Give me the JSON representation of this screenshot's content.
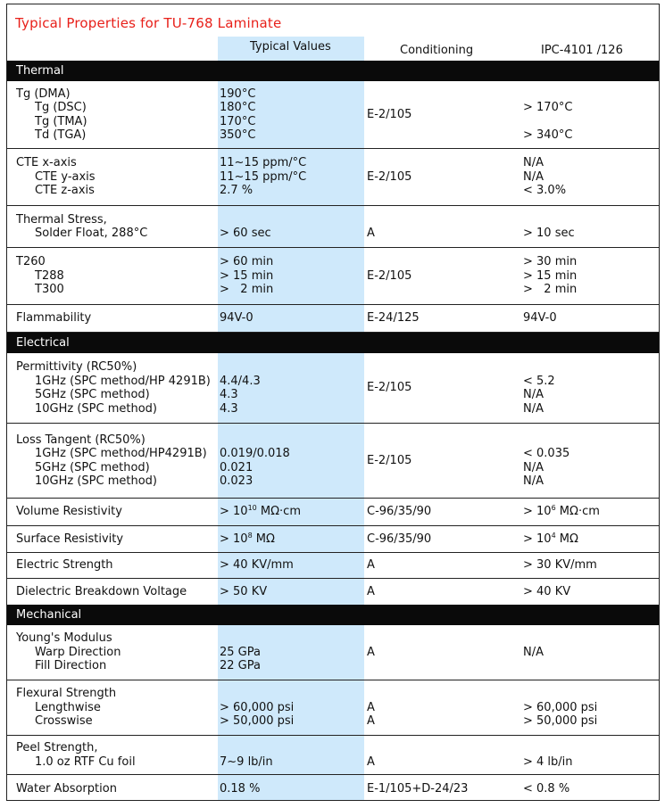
{
  "title": "Typical Properties for TU-768 Laminate",
  "headers": {
    "values": "Typical Values",
    "conditioning": "Conditioning",
    "ipc": "IPC-4101 /126"
  },
  "sections": [
    {
      "name": "Thermal",
      "rows": [
        {
          "label": [
            "Tg (DMA)",
            "Tg (DSC)",
            "Tg (TMA)",
            "Td (TGA)"
          ],
          "values": [
            "190°C",
            "180°C",
            "170°C",
            "350°C"
          ],
          "cond": [
            "E-2/105"
          ],
          "ipc": [
            "",
            "> 170°C",
            "",
            "> 340°C"
          ]
        },
        {
          "label": [
            "CTE x-axis",
            "CTE y-axis",
            "CTE z-axis"
          ],
          "values": [
            "11~15 ppm/°C",
            "11~15 ppm/°C",
            "2.7 %"
          ],
          "cond": [
            "E-2/105"
          ],
          "ipc": [
            "N/A",
            "N/A",
            "< 3.0%"
          ]
        },
        {
          "label": [
            "Thermal Stress,",
            "Solder Float, 288°C"
          ],
          "values": [
            "",
            "> 60 sec"
          ],
          "cond": [
            "",
            "A"
          ],
          "ipc": [
            "",
            "> 10 sec"
          ]
        },
        {
          "label": [
            "T260",
            "T288",
            "T300"
          ],
          "values": [
            "> 60 min",
            "> 15 min",
            ">   2 min"
          ],
          "cond": [
            "E-2/105"
          ],
          "ipc": [
            "> 30 min",
            "> 15 min",
            ">   2 min"
          ]
        },
        {
          "label": [
            "Flammability"
          ],
          "values": [
            "94V-0"
          ],
          "cond": [
            "E-24/125"
          ],
          "ipc": [
            "94V-0"
          ]
        }
      ]
    },
    {
      "name": "Electrical",
      "rows": [
        {
          "label": [
            "Permittivity (RC50%)",
            "1GHz (SPC method/HP 4291B)",
            "5GHz (SPC method)",
            "10GHz (SPC method)"
          ],
          "values": [
            "",
            "4.4/4.3",
            "4.3",
            "4.3"
          ],
          "cond": [
            "E-2/105"
          ],
          "ipc": [
            "",
            "< 5.2",
            "N/A",
            "N/A"
          ]
        },
        {
          "label": [
            "Loss Tangent (RC50%)",
            "1GHz (SPC method/HP4291B)",
            "5GHz (SPC method)",
            "10GHz (SPC method)"
          ],
          "values": [
            "",
            "0.019/0.018",
            "0.021",
            "0.023"
          ],
          "cond": [
            "E-2/105"
          ],
          "ipc": [
            "",
            "< 0.035",
            "N/A",
            "N/A"
          ]
        },
        {
          "label": [
            "Volume Resistivity"
          ],
          "values": [
            "> 10¹⁰ MΩ·cm"
          ],
          "cond": [
            "C-96/35/90"
          ],
          "ipc": [
            "> 10⁶ MΩ·cm"
          ]
        },
        {
          "label": [
            "Surface Resistivity"
          ],
          "values": [
            "> 10⁸ MΩ"
          ],
          "cond": [
            "C-96/35/90"
          ],
          "ipc": [
            "> 10⁴ MΩ"
          ]
        },
        {
          "label": [
            "Electric Strength"
          ],
          "values": [
            "> 40 KV/mm"
          ],
          "cond": [
            "A"
          ],
          "ipc": [
            "> 30 KV/mm"
          ]
        },
        {
          "label": [
            "Dielectric Breakdown Voltage"
          ],
          "values": [
            "> 50 KV"
          ],
          "cond": [
            "A"
          ],
          "ipc": [
            "> 40 KV"
          ]
        }
      ]
    },
    {
      "name": "Mechanical",
      "rows": [
        {
          "label": [
            "Young's Modulus",
            "Warp Direction",
            "Fill Direction"
          ],
          "values": [
            "",
            "25 GPa",
            "22 GPa"
          ],
          "cond": [
            "A"
          ],
          "ipc": [
            "N/A"
          ]
        },
        {
          "label": [
            "Flexural Strength",
            "Lengthwise",
            "Crosswise"
          ],
          "values": [
            "",
            "> 60,000 psi",
            "> 50,000 psi"
          ],
          "cond": [
            "",
            "A",
            "A"
          ],
          "ipc": [
            "",
            "> 60,000 psi",
            "> 50,000 psi"
          ]
        },
        {
          "label": [
            "Peel Strength,",
            "1.0 oz RTF Cu foil"
          ],
          "values": [
            "",
            "7~9 lb/in"
          ],
          "cond": [
            "",
            "A"
          ],
          "ipc": [
            "",
            "> 4 lb/in"
          ]
        },
        {
          "label": [
            "Water Absorption"
          ],
          "values": [
            "0.18 %"
          ],
          "cond": [
            "E-1/105+D-24/23"
          ],
          "ipc": [
            "< 0.8 %"
          ]
        }
      ]
    }
  ]
}
